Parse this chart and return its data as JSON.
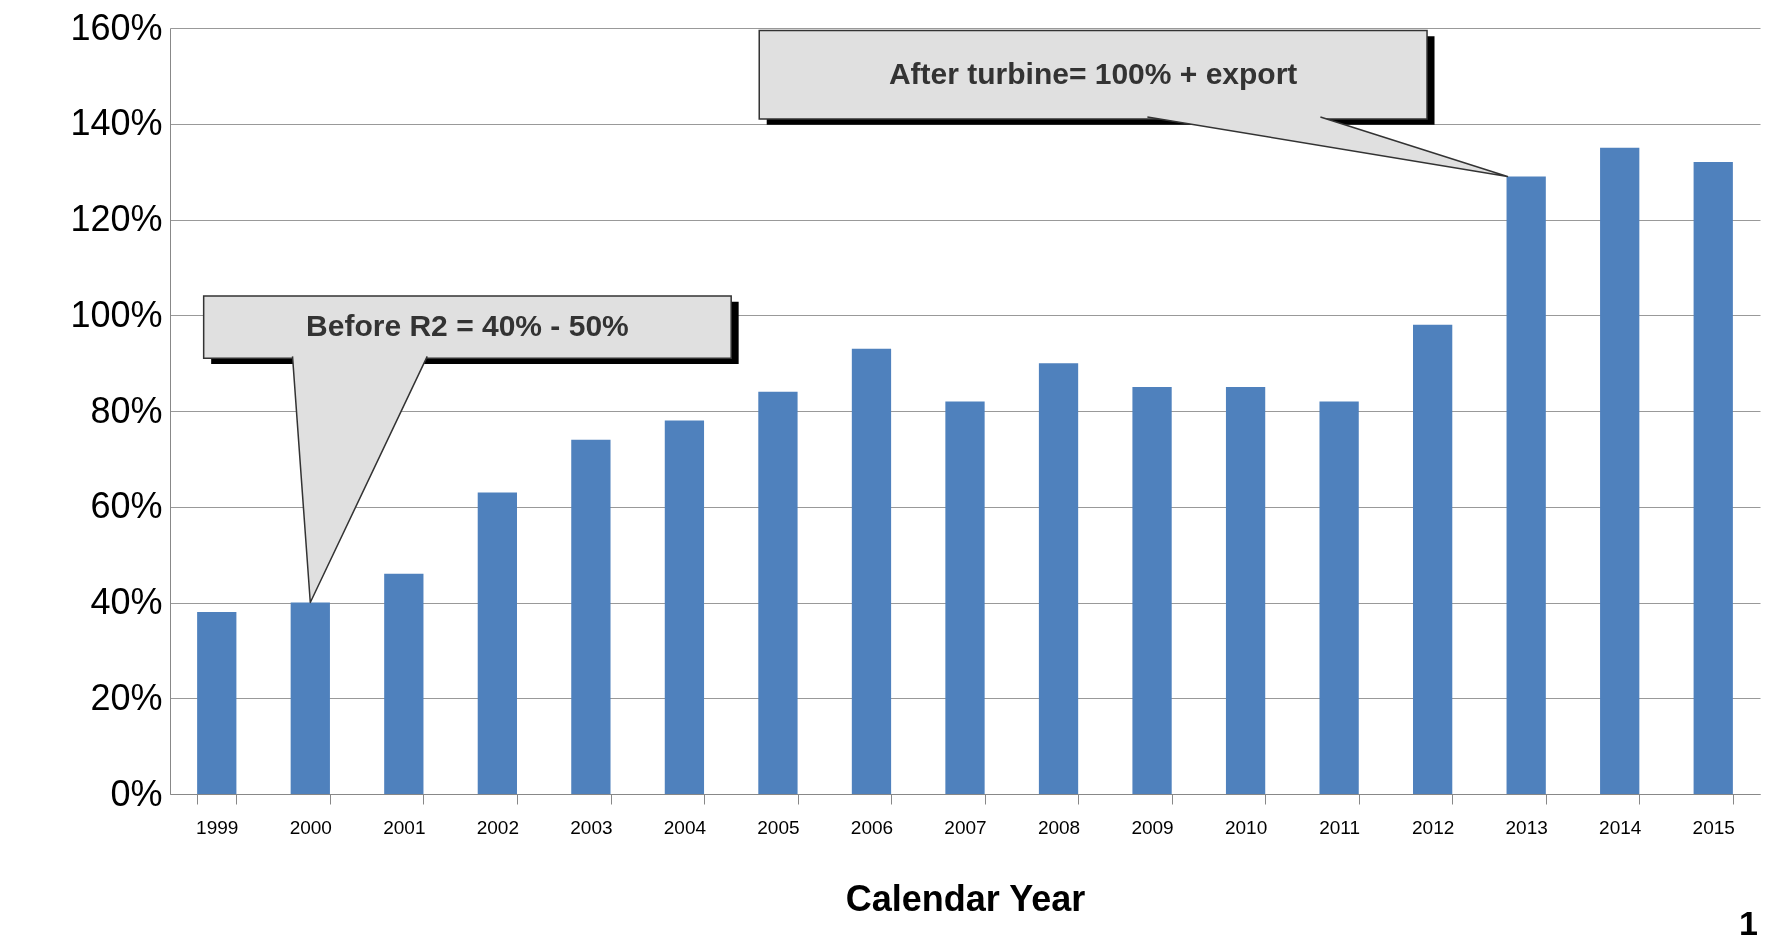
{
  "chart_data": {
    "type": "bar",
    "xlabel": "Calendar Year",
    "categories": [
      "1999",
      "2000",
      "2001",
      "2002",
      "2003",
      "2004",
      "2005",
      "2006",
      "2007",
      "2008",
      "2009",
      "2010",
      "2011",
      "2012",
      "2013",
      "2014",
      "2015"
    ],
    "values": [
      38,
      40,
      46,
      63,
      74,
      78,
      84,
      93,
      82,
      90,
      85,
      85,
      82,
      98,
      129,
      135,
      132
    ],
    "color": "#4f81bd",
    "ylim": [
      0,
      160
    ],
    "yticks": [
      {
        "value": 0,
        "label": "0%"
      },
      {
        "value": 20,
        "label": "20%"
      },
      {
        "value": 40,
        "label": "40%"
      },
      {
        "value": 60,
        "label": "60%"
      },
      {
        "value": 80,
        "label": "80%"
      },
      {
        "value": 100,
        "label": "100%"
      },
      {
        "value": 120,
        "label": "120%"
      },
      {
        "value": 140,
        "label": "140%"
      },
      {
        "value": 160,
        "label": "160%"
      }
    ],
    "grid": "y",
    "annotations": [
      "Before R2 = 40% - 50%",
      "After turbine= 100% + export",
      "1"
    ]
  }
}
